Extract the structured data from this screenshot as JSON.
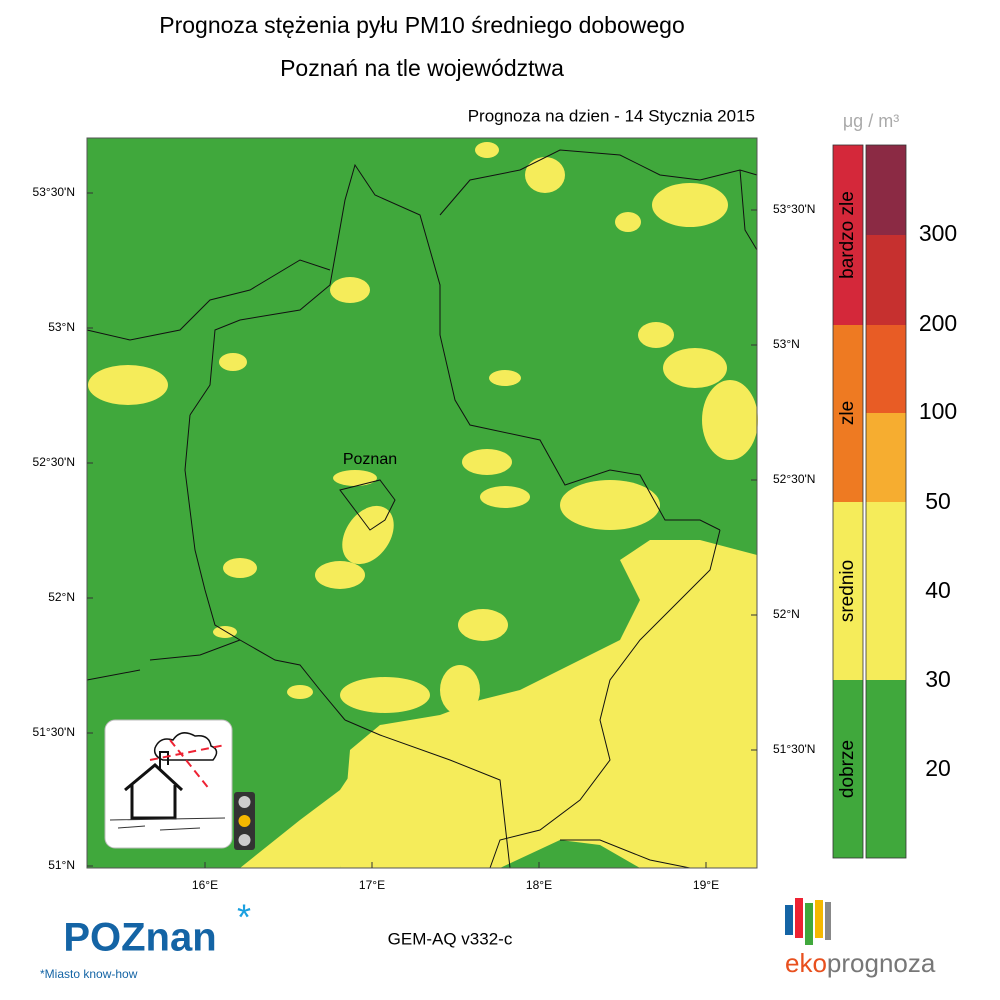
{
  "title": "Prognoza stężenia pyłu PM10 średniego dobowego",
  "subtitle": "Poznań na tle województwa",
  "forecast_date": "Prognoza na dzien -  14 Stycznia 2015",
  "unit": "μg / m³",
  "map": {
    "city_label": "Poznan",
    "lat_labels_left": [
      "53°30'N",
      "53°N",
      "52°30'N",
      "52°N",
      "51°30'N",
      "51°N"
    ],
    "lat_labels_right": [
      "53°30'N",
      "53°N",
      "52°30'N",
      "52°N",
      "51°30'N"
    ],
    "lon_labels": [
      "16°E",
      "17°E",
      "18°E",
      "19°E"
    ]
  },
  "legend": {
    "categories": [
      "bardzo zle",
      "zle",
      "srednio",
      "dobrze"
    ],
    "scale": [
      300,
      200,
      100,
      50,
      40,
      30,
      20
    ]
  },
  "model": "GEM-AQ v332-c",
  "logo_left": "POZnan",
  "logo_left_tagline": "*Miasto know-how",
  "logo_right_prefix": "eko",
  "logo_right_suffix": "prognoza"
}
